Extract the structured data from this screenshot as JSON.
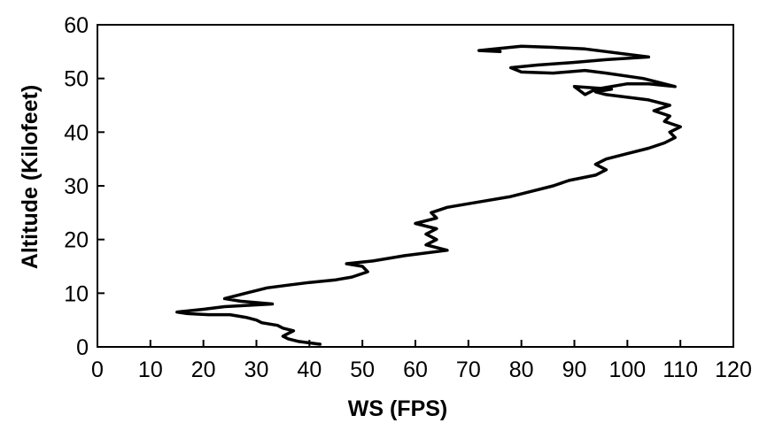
{
  "chart_data": {
    "type": "line",
    "title": "",
    "xlabel": "WS (FPS)",
    "ylabel": "Altitude (Kilofeet)",
    "xlim": [
      0,
      120
    ],
    "ylim": [
      0,
      60
    ],
    "xticks": [
      "0",
      "10",
      "20",
      "30",
      "40",
      "50",
      "60",
      "70",
      "80",
      "90",
      "100",
      "110",
      "120"
    ],
    "yticks": [
      "0",
      "10",
      "20",
      "30",
      "40",
      "50",
      "60"
    ],
    "grid": false,
    "legend": "none",
    "line_color": "#000000",
    "series": [
      {
        "x": [
          42,
          38,
          36,
          35,
          36,
          37,
          35,
          34,
          31,
          30,
          28,
          25,
          21,
          17,
          15,
          20,
          24,
          33,
          27,
          24,
          28,
          32,
          36,
          40,
          45,
          48,
          51,
          50,
          47,
          52,
          58,
          66,
          62,
          64,
          62,
          64,
          60,
          64,
          63,
          66,
          72,
          78,
          82,
          86,
          89,
          94,
          96,
          94,
          96,
          100,
          104,
          107,
          109,
          108,
          110,
          107,
          108,
          105,
          108,
          106,
          104,
          100,
          96,
          94,
          97,
          90,
          92,
          94,
          100,
          104,
          109,
          103,
          96,
          92,
          86,
          80,
          78,
          83,
          90,
          96,
          104,
          100,
          96,
          92,
          86,
          80,
          75,
          72,
          76
        ],
        "y": [
          0.5,
          1,
          1.5,
          2,
          2.5,
          3,
          3.5,
          4,
          4.5,
          5,
          5.5,
          6,
          6,
          6.2,
          6.5,
          7,
          7.5,
          8,
          8.5,
          9,
          10,
          11,
          11.5,
          12,
          12.5,
          13,
          14,
          15,
          15.5,
          16,
          17,
          18,
          19,
          20,
          21,
          22,
          23,
          24,
          25,
          26,
          27,
          28,
          29,
          30,
          31,
          32,
          33,
          34,
          35,
          36,
          37,
          38,
          39,
          40,
          41,
          42,
          43,
          44,
          45,
          45.5,
          46,
          46.5,
          47,
          47.5,
          48,
          48.5,
          47,
          48,
          49,
          49,
          48.5,
          50,
          51,
          51.5,
          51,
          51.2,
          52,
          52.5,
          53,
          53.5,
          54,
          54.5,
          55,
          55.5,
          55.8,
          56,
          55.5,
          55.2,
          55
        ]
      }
    ]
  }
}
